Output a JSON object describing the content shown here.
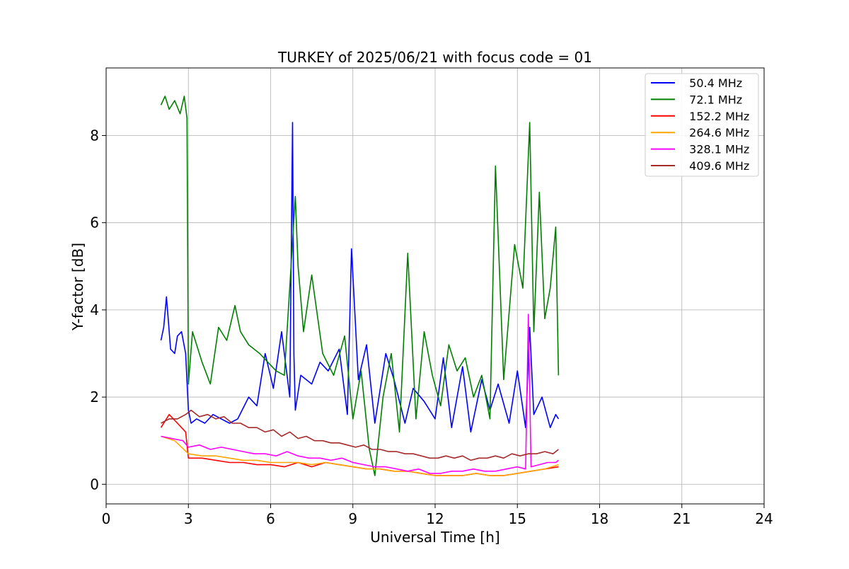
{
  "chart_data": {
    "type": "line",
    "title": "TURKEY of 2025/06/21 with focus code = 01",
    "xlabel": "Universal Time [h]",
    "ylabel": "Y-factor [dB]",
    "xlim": [
      0,
      24
    ],
    "ylim": [
      -0.45,
      9.55
    ],
    "xticks": [
      0,
      3,
      6,
      9,
      12,
      15,
      18,
      21,
      24
    ],
    "xtick_labels": [
      "0",
      "3",
      "6",
      "9",
      "12",
      "15",
      "18",
      "21",
      "24"
    ],
    "yticks": [
      0,
      2,
      4,
      6,
      8
    ],
    "ytick_labels": [
      "0",
      "2",
      "4",
      "6",
      "8"
    ],
    "grid": true,
    "legend_position": "top-right",
    "series": [
      {
        "name": "  50.4 MHz",
        "color": "#0000ff",
        "x": [
          2.0,
          2.1,
          2.2,
          2.35,
          2.5,
          2.6,
          2.75,
          2.9,
          3.0,
          3.1,
          3.3,
          3.6,
          3.9,
          4.2,
          4.5,
          4.8,
          5.2,
          5.5,
          5.8,
          6.1,
          6.4,
          6.7,
          6.8,
          6.85,
          6.9,
          7.1,
          7.5,
          7.8,
          8.1,
          8.5,
          8.8,
          8.95,
          9.2,
          9.5,
          9.8,
          10.2,
          10.5,
          10.9,
          11.2,
          11.6,
          12.0,
          12.3,
          12.6,
          13.0,
          13.3,
          13.7,
          14.0,
          14.3,
          14.7,
          15.0,
          15.3,
          15.45,
          15.6,
          15.9,
          16.2,
          16.4,
          16.5
        ],
        "y": [
          3.3,
          3.6,
          4.3,
          3.1,
          3.0,
          3.4,
          3.5,
          3.0,
          1.7,
          1.4,
          1.5,
          1.4,
          1.6,
          1.5,
          1.4,
          1.5,
          2.0,
          1.8,
          3.0,
          2.2,
          3.5,
          2.0,
          8.3,
          3.0,
          1.7,
          2.5,
          2.3,
          2.8,
          2.6,
          3.1,
          1.6,
          5.4,
          2.4,
          3.2,
          1.4,
          3.0,
          2.4,
          1.4,
          2.2,
          1.9,
          1.5,
          2.9,
          1.3,
          2.7,
          1.2,
          2.4,
          1.7,
          2.3,
          1.4,
          2.6,
          1.3,
          3.6,
          1.6,
          2.0,
          1.3,
          1.6,
          1.5
        ]
      },
      {
        "name": "  72.1 MHz",
        "color": "#008000",
        "x": [
          2.0,
          2.15,
          2.3,
          2.5,
          2.7,
          2.85,
          2.95,
          3.0,
          3.15,
          3.5,
          3.8,
          4.1,
          4.4,
          4.7,
          4.9,
          5.2,
          5.6,
          5.9,
          6.2,
          6.5,
          6.9,
          7.0,
          7.2,
          7.5,
          7.9,
          8.3,
          8.7,
          9.0,
          9.3,
          9.6,
          9.8,
          10.1,
          10.4,
          10.7,
          11.0,
          11.3,
          11.6,
          11.9,
          12.2,
          12.5,
          12.8,
          13.1,
          13.4,
          13.7,
          14.0,
          14.2,
          14.5,
          14.9,
          15.2,
          15.45,
          15.6,
          15.8,
          16.0,
          16.2,
          16.4,
          16.5
        ],
        "y": [
          8.7,
          8.9,
          8.6,
          8.8,
          8.5,
          8.9,
          8.4,
          2.3,
          3.5,
          2.8,
          2.3,
          3.6,
          3.3,
          4.1,
          3.5,
          3.2,
          3.0,
          2.8,
          2.6,
          2.5,
          6.6,
          5.0,
          3.5,
          4.8,
          3.0,
          2.5,
          3.4,
          1.5,
          2.6,
          0.8,
          0.2,
          2.0,
          3.0,
          1.2,
          5.3,
          1.5,
          3.5,
          2.5,
          1.8,
          3.2,
          2.6,
          2.9,
          2.0,
          2.5,
          1.5,
          7.3,
          2.4,
          5.5,
          4.5,
          8.3,
          3.5,
          6.7,
          3.8,
          4.5,
          5.9,
          2.5
        ]
      },
      {
        "name": "  152.2 MHz",
        "color": "#ff0000",
        "x": [
          2.0,
          2.3,
          2.6,
          2.9,
          3.0,
          3.5,
          4.0,
          4.5,
          5.0,
          5.5,
          6.0,
          6.5,
          7.0,
          7.5,
          8.0,
          8.5,
          9.0,
          9.5,
          10.0,
          10.5,
          11.0,
          11.5,
          12.0,
          12.5,
          13.0,
          13.5,
          14.0,
          14.5,
          15.0,
          15.5,
          16.0,
          16.5
        ],
        "y": [
          1.3,
          1.6,
          1.4,
          1.2,
          0.6,
          0.6,
          0.55,
          0.5,
          0.5,
          0.45,
          0.45,
          0.4,
          0.5,
          0.4,
          0.5,
          0.45,
          0.4,
          0.35,
          0.35,
          0.3,
          0.3,
          0.25,
          0.2,
          0.2,
          0.2,
          0.25,
          0.2,
          0.2,
          0.25,
          0.3,
          0.35,
          0.4
        ]
      },
      {
        "name": "  264.6 MHz",
        "color": "#ffa500",
        "x": [
          2.0,
          2.5,
          3.0,
          3.5,
          4.0,
          4.5,
          5.0,
          5.5,
          6.0,
          6.5,
          7.0,
          7.5,
          8.0,
          8.5,
          9.0,
          9.5,
          10.0,
          10.5,
          11.0,
          11.5,
          12.0,
          12.5,
          13.0,
          13.5,
          14.0,
          14.5,
          15.0,
          15.5,
          16.0,
          16.5
        ],
        "y": [
          1.1,
          1.0,
          0.7,
          0.65,
          0.65,
          0.6,
          0.55,
          0.55,
          0.5,
          0.5,
          0.5,
          0.45,
          0.5,
          0.45,
          0.4,
          0.35,
          0.35,
          0.3,
          0.3,
          0.25,
          0.2,
          0.2,
          0.2,
          0.25,
          0.2,
          0.2,
          0.25,
          0.3,
          0.35,
          0.45
        ]
      },
      {
        "name": "  328.1 MHz",
        "color": "#ff00ff",
        "x": [
          2.0,
          2.4,
          2.8,
          3.0,
          3.4,
          3.8,
          4.2,
          4.6,
          5.0,
          5.4,
          5.8,
          6.2,
          6.6,
          7.0,
          7.4,
          7.8,
          8.2,
          8.6,
          9.0,
          9.4,
          9.8,
          10.2,
          10.6,
          11.0,
          11.4,
          11.8,
          12.2,
          12.6,
          13.0,
          13.4,
          13.8,
          14.2,
          14.6,
          15.0,
          15.3,
          15.4,
          15.5,
          15.8,
          16.1,
          16.4,
          16.5
        ],
        "y": [
          1.1,
          1.05,
          1.0,
          0.85,
          0.9,
          0.8,
          0.85,
          0.8,
          0.75,
          0.7,
          0.7,
          0.65,
          0.75,
          0.65,
          0.6,
          0.6,
          0.55,
          0.6,
          0.5,
          0.45,
          0.4,
          0.4,
          0.35,
          0.3,
          0.35,
          0.25,
          0.25,
          0.3,
          0.3,
          0.35,
          0.3,
          0.3,
          0.35,
          0.4,
          0.35,
          3.9,
          0.4,
          0.45,
          0.5,
          0.5,
          0.55
        ]
      },
      {
        "name": "  409.6 MHz",
        "color": "#a52a2a",
        "x": [
          2.0,
          2.3,
          2.6,
          2.9,
          3.1,
          3.4,
          3.7,
          4.0,
          4.3,
          4.6,
          4.9,
          5.2,
          5.5,
          5.8,
          6.1,
          6.4,
          6.7,
          7.0,
          7.3,
          7.6,
          7.9,
          8.2,
          8.5,
          8.8,
          9.1,
          9.4,
          9.7,
          10.0,
          10.3,
          10.6,
          10.9,
          11.2,
          11.5,
          11.8,
          12.1,
          12.4,
          12.7,
          13.0,
          13.3,
          13.6,
          13.9,
          14.2,
          14.5,
          14.8,
          15.1,
          15.4,
          15.7,
          16.0,
          16.3,
          16.5
        ],
        "y": [
          1.4,
          1.5,
          1.5,
          1.6,
          1.7,
          1.55,
          1.6,
          1.5,
          1.55,
          1.4,
          1.4,
          1.3,
          1.3,
          1.2,
          1.25,
          1.1,
          1.2,
          1.05,
          1.1,
          1.0,
          1.0,
          0.95,
          0.95,
          0.9,
          0.85,
          0.9,
          0.8,
          0.8,
          0.75,
          0.75,
          0.7,
          0.7,
          0.65,
          0.6,
          0.6,
          0.65,
          0.6,
          0.65,
          0.55,
          0.6,
          0.6,
          0.65,
          0.6,
          0.7,
          0.65,
          0.7,
          0.7,
          0.75,
          0.7,
          0.8
        ]
      }
    ]
  }
}
